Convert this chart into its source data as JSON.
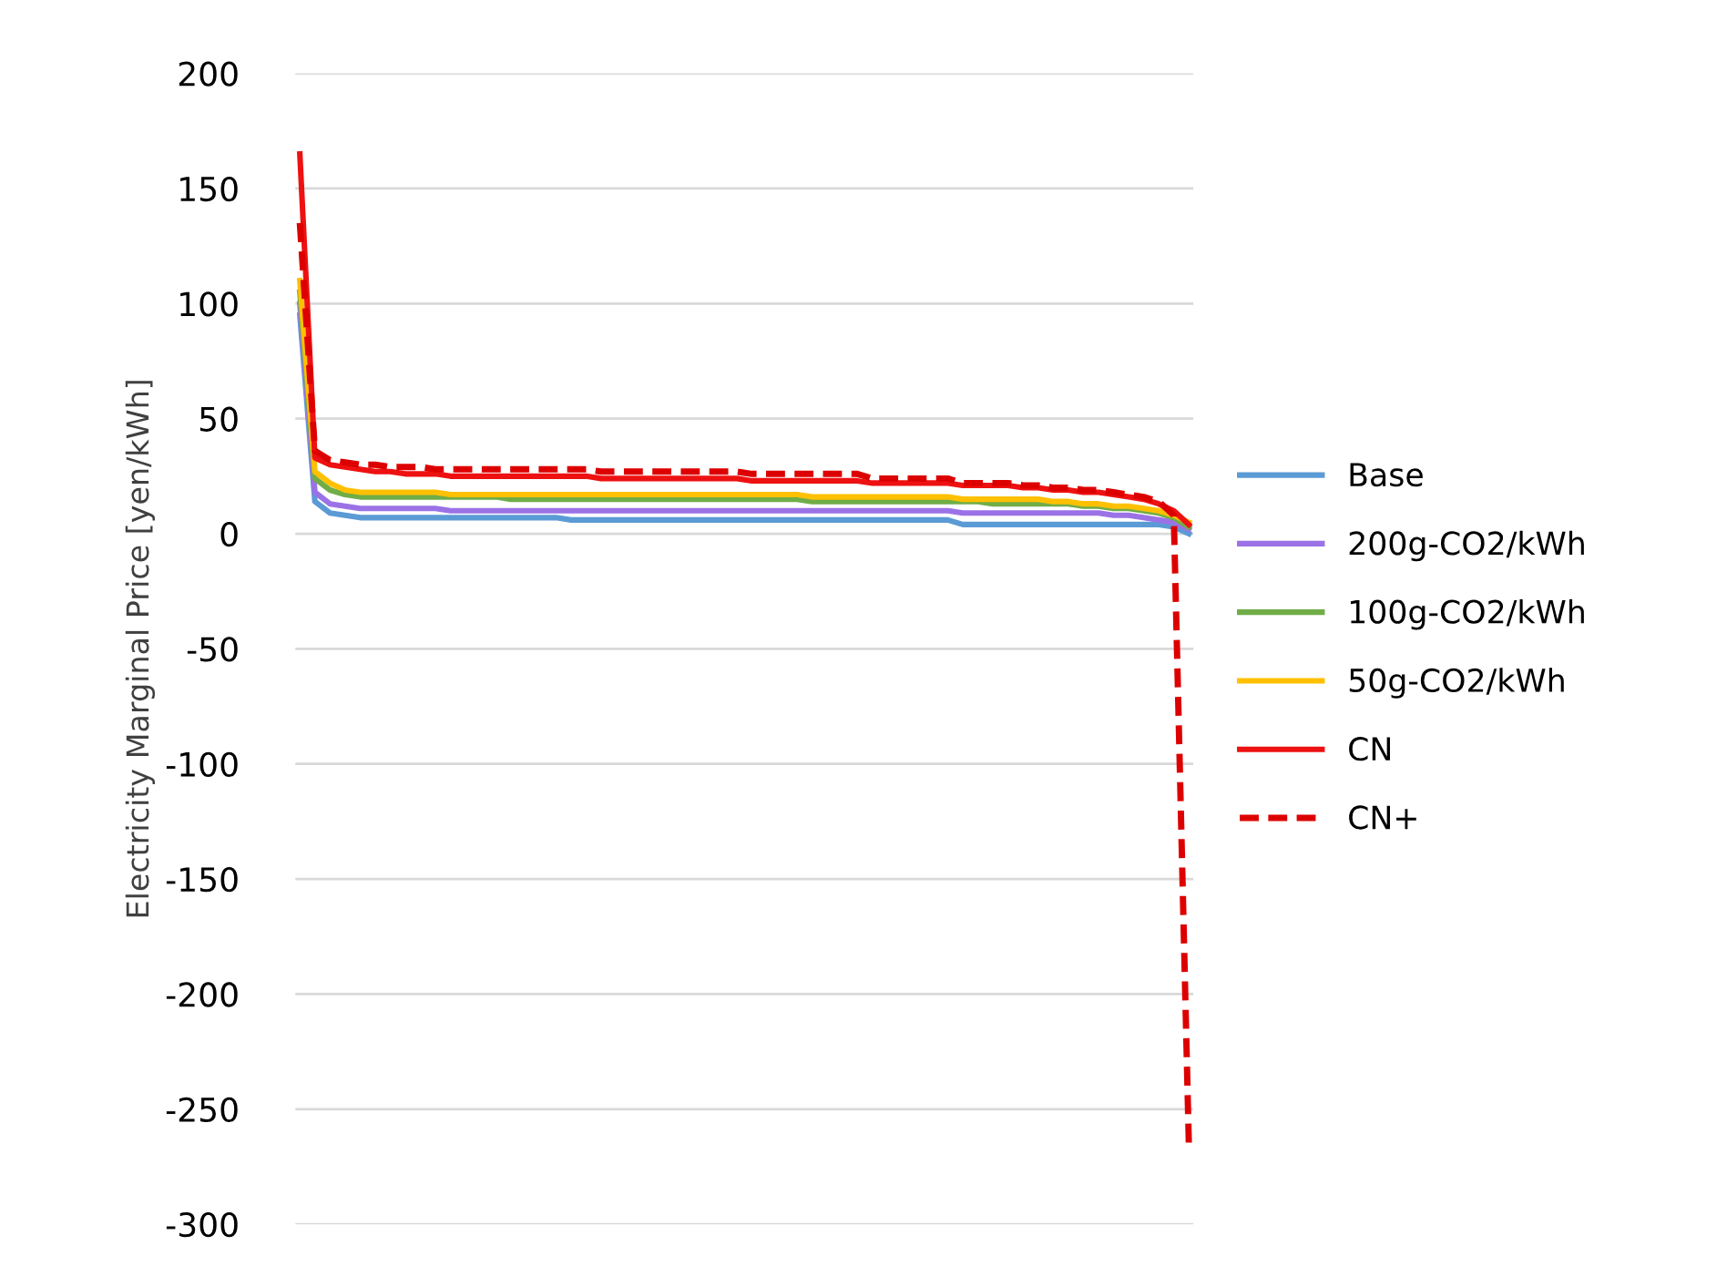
{
  "chart_data": {
    "type": "line",
    "ylabel": "Electricity Marginal Price [yen/kWh]",
    "categories": [
      null,
      null,
      null,
      null,
      null,
      null,
      null,
      null,
      null,
      null,
      null,
      null,
      null,
      null,
      null,
      null,
      null,
      null,
      null,
      null,
      null,
      null,
      null,
      null,
      null,
      null,
      null,
      null,
      null,
      null,
      null,
      null,
      null,
      null,
      null,
      null,
      null,
      null,
      null,
      null,
      null,
      null,
      null,
      null,
      null,
      null,
      null,
      null,
      null,
      null,
      null,
      null,
      null,
      null,
      null,
      null,
      null,
      null,
      null,
      null
    ],
    "ylim": [
      -300,
      200
    ],
    "yticks": [
      -300,
      -250,
      -200,
      -150,
      -100,
      -50,
      0,
      50,
      100,
      150,
      200
    ],
    "grid": "y",
    "legend": "right",
    "tick_labels": "y",
    "line_style": "solid",
    "series": [
      {
        "name": "Base",
        "color": "#5b9bd5",
        "values": [
          95,
          14,
          9,
          8,
          7,
          7,
          7,
          7,
          7,
          7,
          7,
          7,
          7,
          7,
          7,
          7,
          7,
          7,
          6,
          6,
          6,
          6,
          6,
          6,
          6,
          6,
          6,
          6,
          6,
          6,
          6,
          6,
          6,
          6,
          6,
          6,
          6,
          6,
          6,
          6,
          6,
          6,
          6,
          6,
          4,
          4,
          4,
          4,
          4,
          4,
          4,
          4,
          4,
          4,
          4,
          4,
          4,
          4,
          3,
          0
        ]
      },
      {
        "name": "200g-CO2/kWh",
        "color": "#9b72e6",
        "values": [
          100,
          18,
          13,
          12,
          11,
          11,
          11,
          11,
          11,
          11,
          10,
          10,
          10,
          10,
          10,
          10,
          10,
          10,
          10,
          10,
          10,
          10,
          10,
          10,
          10,
          10,
          10,
          10,
          10,
          10,
          10,
          10,
          10,
          10,
          10,
          10,
          10,
          10,
          10,
          10,
          10,
          10,
          10,
          10,
          9,
          9,
          9,
          9,
          9,
          9,
          9,
          9,
          9,
          9,
          8,
          8,
          7,
          6,
          5,
          2
        ]
      },
      {
        "name": "100g-CO2/kWh",
        "color": "#70ad47",
        "values": [
          105,
          24,
          19,
          17,
          16,
          16,
          16,
          16,
          16,
          16,
          16,
          16,
          16,
          16,
          15,
          15,
          15,
          15,
          15,
          15,
          15,
          15,
          15,
          15,
          15,
          15,
          15,
          15,
          15,
          15,
          15,
          15,
          15,
          15,
          14,
          14,
          14,
          14,
          14,
          14,
          14,
          14,
          14,
          14,
          14,
          14,
          13,
          13,
          13,
          13,
          13,
          13,
          12,
          12,
          11,
          11,
          10,
          9,
          7,
          3
        ]
      },
      {
        "name": "50g-CO2/kWh",
        "color": "#ffc000",
        "values": [
          110,
          27,
          22,
          19,
          18,
          18,
          18,
          18,
          18,
          18,
          17,
          17,
          17,
          17,
          17,
          17,
          17,
          17,
          17,
          17,
          17,
          17,
          17,
          17,
          17,
          17,
          17,
          17,
          17,
          17,
          17,
          17,
          17,
          17,
          16,
          16,
          16,
          16,
          16,
          16,
          16,
          16,
          16,
          16,
          15,
          15,
          15,
          15,
          15,
          15,
          14,
          14,
          13,
          13,
          12,
          12,
          11,
          10,
          8,
          5
        ]
      },
      {
        "name": "CN",
        "color": "#ee1111",
        "values": [
          165,
          33,
          30,
          29,
          28,
          27,
          27,
          26,
          26,
          26,
          25,
          25,
          25,
          25,
          25,
          25,
          25,
          25,
          25,
          25,
          24,
          24,
          24,
          24,
          24,
          24,
          24,
          24,
          24,
          24,
          23,
          23,
          23,
          23,
          23,
          23,
          23,
          23,
          22,
          22,
          22,
          22,
          22,
          22,
          21,
          21,
          21,
          21,
          20,
          20,
          19,
          19,
          18,
          18,
          17,
          16,
          15,
          13,
          10,
          4
        ]
      },
      {
        "name": "CN+",
        "color": "#dd0000",
        "line_style": "dashed",
        "values": [
          135,
          36,
          32,
          31,
          30,
          30,
          29,
          29,
          29,
          28,
          28,
          28,
          28,
          28,
          28,
          28,
          28,
          28,
          28,
          28,
          27,
          27,
          27,
          27,
          27,
          27,
          27,
          27,
          27,
          27,
          26,
          26,
          26,
          26,
          26,
          26,
          26,
          26,
          24,
          24,
          24,
          24,
          24,
          24,
          22,
          22,
          22,
          22,
          21,
          21,
          20,
          20,
          19,
          19,
          18,
          17,
          16,
          14,
          8,
          -265
        ]
      }
    ]
  }
}
